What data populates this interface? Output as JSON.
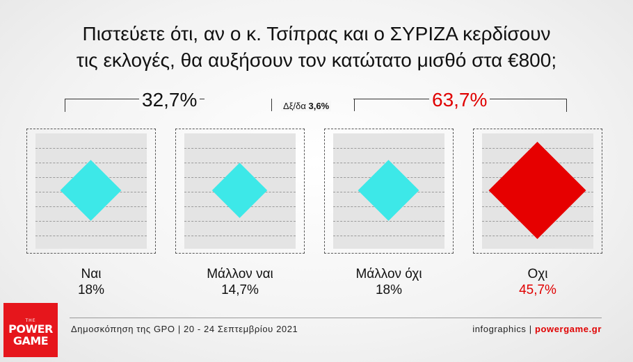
{
  "title_lines": [
    "Πιστεύετε ότι, αν ο κ. Τσίπρας και ο ΣΥΡΙΖΑ κερδίσουν",
    "τις εκλογές, θα αυξήσουν τον κατώτατο μισθό στα €800;"
  ],
  "groups": {
    "left_total": "32,7%",
    "right_total": "63,7%",
    "margin_prefix": "Δξ/δα",
    "margin_value": "3,6%"
  },
  "chart_data": {
    "type": "bar",
    "title": "Πιστεύετε ότι, αν ο κ. Τσίπρας και ο ΣΥΡΙΖΑ κερδίσουν τις εκλογές, θα αυξήσουν τον κατώτατο μισθό στα €800;",
    "categories": [
      "Ναι",
      "Μάλλον ναι",
      "Μάλλον όχι",
      "Οχι"
    ],
    "values": [
      18,
      14.7,
      18,
      45.7
    ],
    "value_labels": [
      "18%",
      "14,7%",
      "18%",
      "45,7%"
    ],
    "colors": [
      "#3de8e8",
      "#3de8e8",
      "#3de8e8",
      "#e60000"
    ],
    "value_label_colors": [
      "#111111",
      "#111111",
      "#111111",
      "#e00000"
    ],
    "grouped_totals": [
      {
        "value_label": "32,7%",
        "categories": [
          "Ναι",
          "Μάλλον ναι"
        ]
      },
      {
        "value_label": "63,7%",
        "categories": [
          "Μάλλον όχι",
          "Οχι"
        ]
      }
    ],
    "margin_of_error": "3,6%"
  },
  "footer": {
    "source": "Δημοσκόπηση της GPO | 20 - 24 Σεπτεμβρίου 2021",
    "credit_prefix": "infographics |",
    "credit_site": "powergame.gr"
  },
  "logo": {
    "the": "THE",
    "line1": "POWER",
    "line2": "GAME"
  }
}
